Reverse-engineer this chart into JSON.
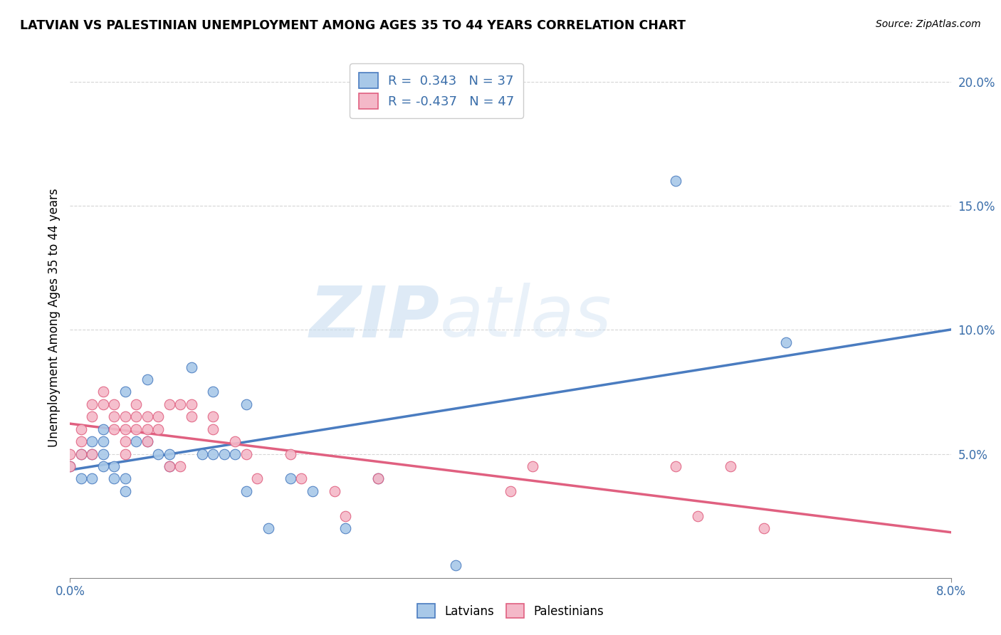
{
  "title": "LATVIAN VS PALESTINIAN UNEMPLOYMENT AMONG AGES 35 TO 44 YEARS CORRELATION CHART",
  "source": "Source: ZipAtlas.com",
  "ylabel": "Unemployment Among Ages 35 to 44 years",
  "xlim": [
    0.0,
    0.08
  ],
  "ylim": [
    0.0,
    0.21
  ],
  "latvian_color": "#a8c8e8",
  "palestinian_color": "#f4b8c8",
  "latvian_line_color": "#4a7cc0",
  "palestinian_line_color": "#e06080",
  "latvian_R": 0.343,
  "latvian_N": 37,
  "palestinian_R": -0.437,
  "palestinian_N": 47,
  "latvian_x": [
    0.0,
    0.001,
    0.001,
    0.002,
    0.002,
    0.002,
    0.003,
    0.003,
    0.003,
    0.003,
    0.004,
    0.004,
    0.005,
    0.005,
    0.005,
    0.006,
    0.007,
    0.007,
    0.008,
    0.009,
    0.009,
    0.011,
    0.012,
    0.013,
    0.013,
    0.014,
    0.015,
    0.016,
    0.016,
    0.018,
    0.02,
    0.022,
    0.025,
    0.028,
    0.035,
    0.055,
    0.065
  ],
  "latvian_y": [
    0.045,
    0.05,
    0.04,
    0.055,
    0.05,
    0.04,
    0.06,
    0.055,
    0.05,
    0.045,
    0.045,
    0.04,
    0.04,
    0.035,
    0.075,
    0.055,
    0.08,
    0.055,
    0.05,
    0.05,
    0.045,
    0.085,
    0.05,
    0.05,
    0.075,
    0.05,
    0.05,
    0.07,
    0.035,
    0.02,
    0.04,
    0.035,
    0.02,
    0.04,
    0.005,
    0.16,
    0.095
  ],
  "palestinian_x": [
    0.0,
    0.0,
    0.001,
    0.001,
    0.001,
    0.002,
    0.002,
    0.002,
    0.003,
    0.003,
    0.004,
    0.004,
    0.004,
    0.005,
    0.005,
    0.005,
    0.005,
    0.006,
    0.006,
    0.006,
    0.007,
    0.007,
    0.007,
    0.008,
    0.008,
    0.009,
    0.009,
    0.01,
    0.01,
    0.011,
    0.011,
    0.013,
    0.013,
    0.015,
    0.016,
    0.017,
    0.02,
    0.021,
    0.024,
    0.025,
    0.028,
    0.04,
    0.042,
    0.055,
    0.057,
    0.06,
    0.063
  ],
  "palestinian_y": [
    0.05,
    0.045,
    0.06,
    0.055,
    0.05,
    0.07,
    0.065,
    0.05,
    0.075,
    0.07,
    0.07,
    0.065,
    0.06,
    0.065,
    0.06,
    0.055,
    0.05,
    0.07,
    0.065,
    0.06,
    0.065,
    0.06,
    0.055,
    0.065,
    0.06,
    0.07,
    0.045,
    0.07,
    0.045,
    0.07,
    0.065,
    0.065,
    0.06,
    0.055,
    0.05,
    0.04,
    0.05,
    0.04,
    0.035,
    0.025,
    0.04,
    0.035,
    0.045,
    0.045,
    0.025,
    0.045,
    0.02
  ],
  "background_color": "#ffffff",
  "grid_color": "#cccccc",
  "watermark_zip": "ZIP",
  "watermark_atlas": "atlas"
}
